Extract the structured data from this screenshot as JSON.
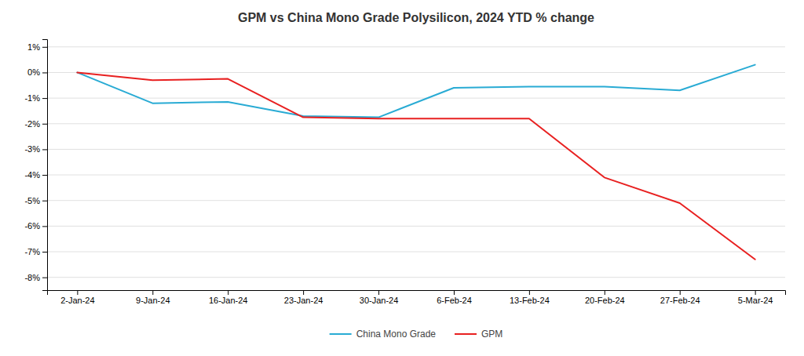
{
  "chart_data": {
    "type": "line",
    "title": "GPM vs China Mono Grade Polysilicon, 2024 YTD % change",
    "categories": [
      "2-Jan-24",
      "9-Jan-24",
      "16-Jan-24",
      "23-Jan-24",
      "30-Jan-24",
      "6-Feb-24",
      "13-Feb-24",
      "20-Feb-24",
      "27-Feb-24",
      "5-Mar-24"
    ],
    "series": [
      {
        "name": "China Mono Grade",
        "color": "#29ABD4",
        "values": [
          0.0,
          -1.2,
          -1.15,
          -1.7,
          -1.75,
          -0.6,
          -0.55,
          -0.55,
          -0.7,
          0.3
        ]
      },
      {
        "name": "GPM",
        "color": "#E82020",
        "values": [
          0.0,
          -0.3,
          -0.25,
          -1.75,
          -1.8,
          -1.8,
          -1.8,
          -4.1,
          -5.1,
          -7.3
        ]
      }
    ],
    "ylim": [
      -8.5,
      1.3
    ],
    "yticks": [
      {
        "value": 1,
        "label": "1%"
      },
      {
        "value": 0,
        "label": "0%"
      },
      {
        "value": -1,
        "label": "-1%"
      },
      {
        "value": -2,
        "label": "-2%"
      },
      {
        "value": -3,
        "label": "-3%"
      },
      {
        "value": -4,
        "label": "-4%"
      },
      {
        "value": -5,
        "label": "-5%"
      },
      {
        "value": -6,
        "label": "-6%"
      },
      {
        "value": -7,
        "label": "-7%"
      },
      {
        "value": -8,
        "label": "-8%"
      }
    ],
    "grid": true,
    "legend": "bottom"
  }
}
